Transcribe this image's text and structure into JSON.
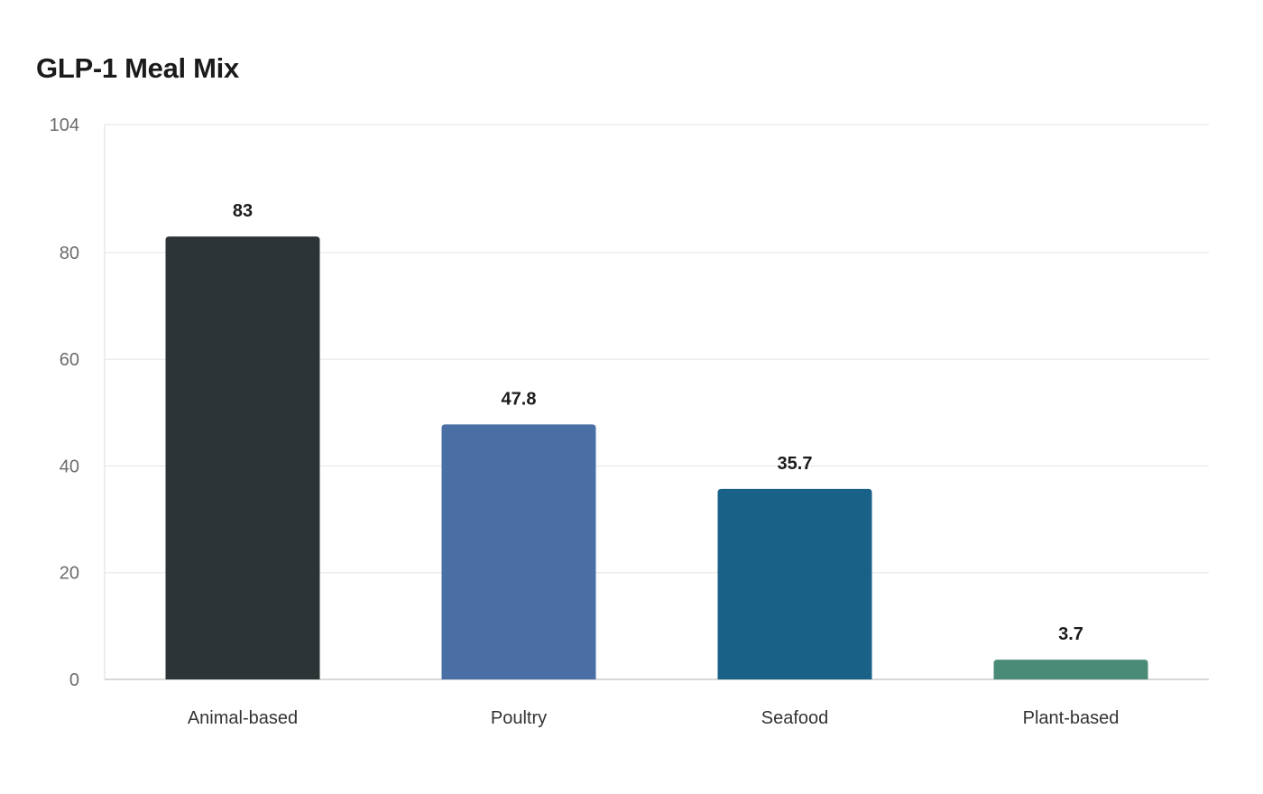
{
  "chart_data": {
    "type": "bar",
    "title": "GLP-1 Meal Mix",
    "xlabel": "",
    "ylabel": "",
    "categories": [
      "Animal-based",
      "Poultry",
      "Seafood",
      "Plant-based"
    ],
    "values": [
      83,
      47.8,
      35.7,
      3.7
    ],
    "value_labels": [
      "83",
      "47.8",
      "35.7",
      "3.7"
    ],
    "colors": [
      "#2d3436",
      "#4a6fa5",
      "#1a6188",
      "#4a8b77"
    ],
    "ylim": [
      0,
      104
    ],
    "y_ticks": [
      0,
      20,
      40,
      60,
      80,
      104
    ],
    "grid": true,
    "legend": "none"
  }
}
